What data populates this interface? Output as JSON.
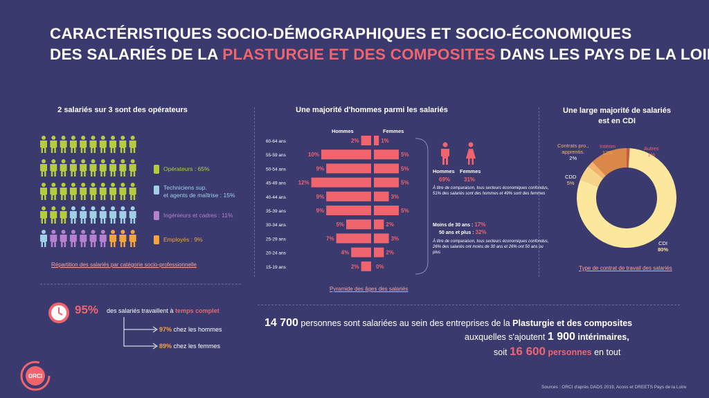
{
  "header": {
    "title_line1": "CARACTÉRISTIQUES SOCIO-DÉMOGRAPHIQUES ET SOCIO-ÉCONOMIQUES",
    "title_line2_a": "DES SALARIÉS DE LA ",
    "title_line2_hl": "PLASTURGIE ET DES COMPOSITES",
    "title_line2_b": " DANS LES PAYS DE LA LOIRE"
  },
  "colors": {
    "background": "#3b3a6e",
    "accent": "#f0646e",
    "operateurs": "#b5cc3e",
    "techniciens": "#9fd0e6",
    "ingenieurs": "#b77fcf",
    "employes": "#f4a43c",
    "cdi": "#fbe89c",
    "cdd": "#f6d48a",
    "contrats_pro": "#f4b36a",
    "interim": "#d9884a",
    "autres": "#c65a43"
  },
  "categories_section": {
    "title": "2 salariés sur 3 sont des opérateurs",
    "legend": [
      {
        "label": "Opérateurs : 65%",
        "color": "#b5cc3e",
        "icon": "person-icon"
      },
      {
        "label_a": "Techniciens sup.",
        "label_b": "et agents de maîtrise : 15%",
        "color": "#9fd0e6",
        "icon": "person-icon"
      },
      {
        "label": "Ingénieurs et cadres : 11%",
        "color": "#b77fcf",
        "icon": "person-icon"
      },
      {
        "label": "Employés : 9%",
        "color": "#f4a43c",
        "icon": "person-icon"
      }
    ],
    "link": "Répartition des salariés par catégorie socio-professionnelle"
  },
  "chart_data": [
    {
      "type": "bar",
      "subtype": "population-pyramid",
      "title": "Une majorité d'hommes parmi les salariés",
      "categories": [
        "60-64 ans",
        "55-59 ans",
        "50-54 ans",
        "45-49 ans",
        "40-44 ans",
        "35-39 ans",
        "30-34 ans",
        "25-29 ans",
        "20-24 ans",
        "15-19 ans"
      ],
      "series": [
        {
          "name": "Hommes",
          "values": [
            2,
            10,
            9,
            12,
            9,
            9,
            5,
            7,
            4,
            2
          ]
        },
        {
          "name": "Femmes",
          "values": [
            1,
            5,
            5,
            5,
            3,
            5,
            2,
            3,
            2,
            0
          ]
        }
      ],
      "value_labels_hommes": [
        "2%",
        "10%",
        "9%",
        "12%",
        "9%",
        "9%",
        "5%",
        "7%",
        "4%",
        "2%"
      ],
      "value_labels_femmes": [
        "1%",
        "5%",
        "5%",
        "5%",
        "3%",
        "5%",
        "2%",
        "3%",
        "2%",
        "0%"
      ],
      "bar_color": "#f0646e",
      "link": "Pyramide des âges des salariés"
    },
    {
      "type": "pie",
      "subtype": "donut",
      "title_line1": "Une large majorité de salariés",
      "title_line2": "est en CDI",
      "slices": [
        {
          "label": "CDI",
          "value": 80,
          "value_label": "80%",
          "color": "#fbe89c"
        },
        {
          "label": "CDD",
          "value": 5,
          "value_label": "5%",
          "color": "#f6d48a"
        },
        {
          "label_a": "Contrats pro.,",
          "label_b": "apprentis.",
          "value": 2,
          "value_label": "2%",
          "color": "#f4b36a"
        },
        {
          "label": "Intérim",
          "value": 12,
          "value_label": "12%",
          "color": "#d9884a"
        },
        {
          "label": "Autres",
          "value": 1,
          "value_label": "1%",
          "color": "#c65a43"
        }
      ],
      "link": "Type de contrat de travail des salariés"
    }
  ],
  "gender": {
    "hommes_label": "Hommes",
    "hommes_value": "69%",
    "femmes_label": "Femmes",
    "femmes_value": "31%",
    "note": "À titre de comparaison, tous secteurs économiques confondus, 51% des salariés sont des hommes et 49% sont des femmes",
    "moins30_label": "Moins de 30 ans :",
    "moins30_value": "17%",
    "plus50_label": "50 ans et plus :",
    "plus50_value": "32%",
    "note2": "À titre de comparaison, tous secteurs économiques confondus, 26% des salariés ont moins de 30 ans et 26% ont 50 ans ou plus"
  },
  "fulltime": {
    "value": "95%",
    "text_a": "des salariés travaillent à ",
    "text_b": "temps complet",
    "hommes_value": "97%",
    "hommes_text": " chez les hommes",
    "femmes_value": "89%",
    "femmes_text": " chez les femmes"
  },
  "totals": {
    "line1_num": "14 700",
    "line1_a": " personnes sont salariées au sein des entreprises de la ",
    "line1_b": "Plasturgie et des composites",
    "line2_a": "auxquelles s'ajoutent ",
    "line2_num": "1 900",
    "line2_b": " intérimaires,",
    "line3_a": "soit ",
    "line3_num": "16 600",
    "line3_b": " personnes",
    "line3_c": " en tout"
  },
  "footer": {
    "source": "Sources : ORCI d'après DADS 2019, Acoss et DREETS Pays de la Loire",
    "logo_text": "ORCI"
  }
}
